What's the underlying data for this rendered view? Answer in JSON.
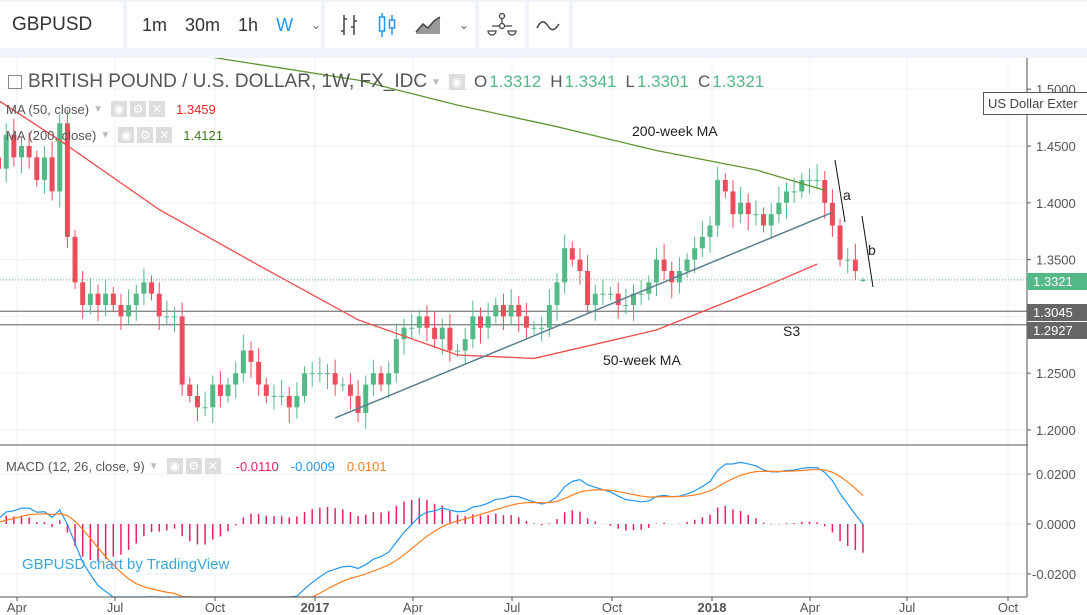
{
  "toolbar": {
    "symbol": "GBPUSD",
    "intervals": [
      "1m",
      "30m",
      "1h",
      "W"
    ],
    "active_interval": "W",
    "icons": [
      "chevron-down-icon",
      "bar-chart-icon",
      "candlestick-icon",
      "area-chart-icon",
      "chevron-down-icon",
      "compare-icon",
      "indicators-icon"
    ]
  },
  "header": {
    "title": "BRITISH POUND / U.S. DOLLAR, 1W, FX_IDC",
    "ohlc": {
      "o_label": "O",
      "o": "1.3312",
      "h_label": "H",
      "h": "1.3341",
      "l_label": "L",
      "l": "1.3301",
      "c_label": "C",
      "c": "1.3321"
    }
  },
  "indicators": {
    "ma50": {
      "label": "MA (50, close)",
      "value": "1.3459"
    },
    "ma200": {
      "label": "MA (200, close)",
      "value": "1.4121"
    },
    "macd": {
      "label": "MACD (12, 26, close, 9)",
      "hist": "-0.0110",
      "macd": "-0.0009",
      "signal": "0.0101"
    }
  },
  "tooltip": "US Dollar Exter",
  "watermark": "GBPUSD chart by TradingView",
  "price_tags": {
    "last": "1.3321",
    "s1": "1.3045",
    "s2": "1.2927"
  },
  "annotations": {
    "ma200": "200-week MA",
    "ma50": "50-week MA",
    "s3": "S3",
    "a": "a",
    "b": "b"
  },
  "colors": {
    "up": "#53b987",
    "down": "#eb4d5c",
    "ma50": "#f24b4b",
    "ma200": "#5d9632",
    "macd": "#2196f3",
    "signal": "#ff7f1f",
    "hist": "#e91e63"
  },
  "chart_data": {
    "type": "candlestick",
    "interval": "1W",
    "price_axis": {
      "ticks": [
        "1.5000",
        "1.4500",
        "1.4000",
        "1.3500",
        "1.2500",
        "1.2000"
      ],
      "ylim": [
        1.18,
        1.52
      ]
    },
    "macd_axis": {
      "ticks": [
        "0.0200",
        "0.0000",
        "-0.0200"
      ],
      "ylim": [
        -0.028,
        0.03
      ]
    },
    "time_axis": {
      "ticks": [
        "Apr",
        "Jul",
        "Oct",
        "2017",
        "Apr",
        "Jul",
        "Oct",
        "2018",
        "Apr",
        "Jul",
        "Oct"
      ]
    },
    "closes": [
      1.42,
      1.41,
      1.43,
      1.42,
      1.44,
      1.43,
      1.46,
      1.44,
      1.45,
      1.44,
      1.42,
      1.44,
      1.41,
      1.47,
      1.37,
      1.33,
      1.31,
      1.32,
      1.31,
      1.32,
      1.31,
      1.3,
      1.31,
      1.32,
      1.33,
      1.32,
      1.3,
      1.3,
      1.3,
      1.24,
      1.23,
      1.22,
      1.22,
      1.24,
      1.23,
      1.24,
      1.25,
      1.27,
      1.26,
      1.24,
      1.23,
      1.23,
      1.23,
      1.22,
      1.23,
      1.25,
      1.25,
      1.25,
      1.25,
      1.24,
      1.24,
      1.23,
      1.215,
      1.24,
      1.25,
      1.24,
      1.25,
      1.28,
      1.29,
      1.29,
      1.3,
      1.29,
      1.28,
      1.29,
      1.27,
      1.27,
      1.28,
      1.3,
      1.29,
      1.3,
      1.31,
      1.3,
      1.31,
      1.3,
      1.29,
      1.29,
      1.29,
      1.31,
      1.33,
      1.36,
      1.35,
      1.34,
      1.31,
      1.32,
      1.32,
      1.32,
      1.31,
      1.31,
      1.32,
      1.32,
      1.33,
      1.35,
      1.34,
      1.33,
      1.34,
      1.35,
      1.36,
      1.37,
      1.38,
      1.42,
      1.41,
      1.39,
      1.4,
      1.39,
      1.39,
      1.38,
      1.39,
      1.4,
      1.41,
      1.41,
      1.42,
      1.42,
      1.42,
      1.4,
      1.38,
      1.35,
      1.35,
      1.34,
      1.3321
    ],
    "last_bar": {
      "open": 1.3312,
      "high": 1.3341,
      "low": 1.3301,
      "close": 1.3321
    },
    "ma50": [
      [
        0,
        1.512
      ],
      [
        13,
        1.455
      ],
      [
        26,
        1.394
      ],
      [
        39,
        1.345
      ],
      [
        52,
        1.297
      ],
      [
        65,
        1.266
      ],
      [
        75,
        1.263
      ],
      [
        91,
        1.288
      ],
      [
        104,
        1.323
      ],
      [
        112,
        1.346
      ]
    ],
    "ma200": [
      [
        33,
        1.528
      ],
      [
        52,
        1.508
      ],
      [
        65,
        1.486
      ],
      [
        78,
        1.467
      ],
      [
        91,
        1.446
      ],
      [
        104,
        1.429
      ],
      [
        113,
        1.411
      ]
    ],
    "support_levels": [
      1.3045,
      1.2927
    ],
    "trendline": [
      [
        49,
        1.2106
      ],
      [
        114,
        1.3915
      ]
    ],
    "legend": [
      "MA (50, close)",
      "MA (200, close)",
      "MACD (12, 26, close, 9)"
    ]
  }
}
